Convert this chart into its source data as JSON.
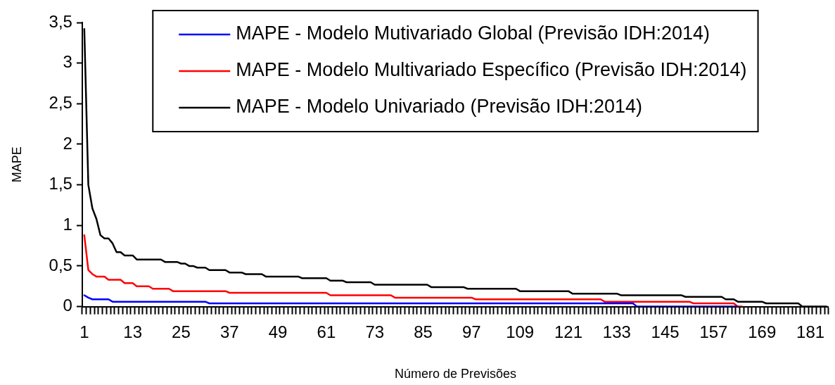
{
  "chart_data": {
    "type": "line",
    "xlabel": "Número de Previsões",
    "ylabel": "MAPE",
    "categories": [
      "1",
      null,
      null,
      null,
      null,
      null,
      null,
      null,
      null,
      null,
      null,
      null,
      "13",
      null,
      null,
      null,
      null,
      null,
      null,
      null,
      null,
      null,
      null,
      null,
      "25",
      null,
      null,
      null,
      null,
      null,
      null,
      null,
      null,
      null,
      null,
      null,
      "37",
      null,
      null,
      null,
      null,
      null,
      null,
      null,
      null,
      null,
      null,
      null,
      "49",
      null,
      null,
      null,
      null,
      null,
      null,
      null,
      null,
      null,
      null,
      null,
      "61",
      null,
      null,
      null,
      null,
      null,
      null,
      null,
      null,
      null,
      null,
      null,
      "73",
      null,
      null,
      null,
      null,
      null,
      null,
      null,
      null,
      null,
      null,
      null,
      "85",
      null,
      null,
      null,
      null,
      null,
      null,
      null,
      null,
      null,
      null,
      null,
      "97",
      null,
      null,
      null,
      null,
      null,
      null,
      null,
      null,
      null,
      null,
      null,
      "109",
      null,
      null,
      null,
      null,
      null,
      null,
      null,
      null,
      null,
      null,
      null,
      "121",
      null,
      null,
      null,
      null,
      null,
      null,
      null,
      null,
      null,
      null,
      null,
      "133",
      null,
      null,
      null,
      null,
      null,
      null,
      null,
      null,
      null,
      null,
      null,
      "145",
      null,
      null,
      null,
      null,
      null,
      null,
      null,
      null,
      null,
      null,
      null,
      "157",
      null,
      null,
      null,
      null,
      null,
      null,
      null,
      null,
      null,
      null,
      null,
      "169",
      null,
      null,
      null,
      null,
      null,
      null,
      null,
      null,
      null,
      null,
      null,
      "181",
      null,
      null,
      null,
      null
    ],
    "series": [
      {
        "name": "MAPE - Modelo Mutivariado Global (Previsão IDH:2014)",
        "color": "#0000ff",
        "values": [
          0.14,
          0.11,
          0.09,
          0.09,
          0.09,
          0.09,
          0.09,
          0.06,
          0.06,
          0.06,
          0.06,
          0.06,
          0.06,
          0.06,
          0.06,
          0.06,
          0.06,
          0.06,
          0.06,
          0.06,
          0.06,
          0.06,
          0.06,
          0.06,
          0.06,
          0.06,
          0.06,
          0.06,
          0.06,
          0.06,
          0.06,
          0.04,
          0.04,
          0.04,
          0.04,
          0.04,
          0.04,
          0.04,
          0.04,
          0.04,
          0.04,
          0.04,
          0.04,
          0.04,
          0.04,
          0.04,
          0.04,
          0.04,
          0.04,
          0.04,
          0.04,
          0.04,
          0.04,
          0.04,
          0.04,
          0.04,
          0.04,
          0.04,
          0.04,
          0.04,
          0.04,
          0.04,
          0.04,
          0.04,
          0.04,
          0.04,
          0.04,
          0.04,
          0.04,
          0.04,
          0.04,
          0.04,
          0.04,
          0.04,
          0.04,
          0.04,
          0.04,
          0.04,
          0.04,
          0.04,
          0.04,
          0.04,
          0.04,
          0.04,
          0.04,
          0.04,
          0.04,
          0.04,
          0.04,
          0.04,
          0.04,
          0.04,
          0.04,
          0.04,
          0.04,
          0.04,
          0.04,
          0.04,
          0.04,
          0.04,
          0.04,
          0.04,
          0.04,
          0.04,
          0.04,
          0.04,
          0.04,
          0.04,
          0.04,
          0.04,
          0.04,
          0.04,
          0.04,
          0.04,
          0.04,
          0.04,
          0.04,
          0.04,
          0.04,
          0.04,
          0.04,
          0.04,
          0.04,
          0.04,
          0.04,
          0.04,
          0.04,
          0.04,
          0.04,
          0.04,
          0.04,
          0.04,
          0.04,
          0.04,
          0.04,
          0.04,
          0.04,
          0,
          0,
          0,
          0,
          0,
          0,
          0,
          0,
          0,
          0,
          0,
          0,
          0,
          0,
          0,
          0,
          0,
          0,
          0,
          0,
          0,
          0,
          0,
          0,
          0,
          0,
          null,
          null,
          null,
          null,
          null,
          null,
          null,
          null,
          null,
          null,
          null,
          null,
          null,
          null,
          null,
          null,
          null,
          null,
          null,
          null,
          null,
          null
        ]
      },
      {
        "name": "MAPE - Modelo Multivariado Específico (Previsão IDH:2014)",
        "color": "#ff0000",
        "values": [
          0.88,
          0.45,
          0.4,
          0.37,
          0.37,
          0.37,
          0.33,
          0.33,
          0.33,
          0.33,
          0.29,
          0.29,
          0.29,
          0.25,
          0.25,
          0.25,
          0.25,
          0.22,
          0.22,
          0.22,
          0.22,
          0.22,
          0.19,
          0.19,
          0.19,
          0.19,
          0.19,
          0.19,
          0.19,
          0.19,
          0.19,
          0.19,
          0.19,
          0.19,
          0.19,
          0.19,
          0.17,
          0.17,
          0.17,
          0.17,
          0.17,
          0.17,
          0.17,
          0.17,
          0.17,
          0.17,
          0.17,
          0.17,
          0.17,
          0.17,
          0.17,
          0.17,
          0.17,
          0.17,
          0.17,
          0.17,
          0.17,
          0.17,
          0.17,
          0.17,
          0.17,
          0.14,
          0.14,
          0.14,
          0.14,
          0.14,
          0.14,
          0.14,
          0.14,
          0.14,
          0.14,
          0.14,
          0.14,
          0.14,
          0.14,
          0.14,
          0.14,
          0.11,
          0.11,
          0.11,
          0.11,
          0.11,
          0.11,
          0.11,
          0.11,
          0.11,
          0.11,
          0.11,
          0.11,
          0.11,
          0.11,
          0.11,
          0.11,
          0.11,
          0.11,
          0.11,
          0.11,
          0.09,
          0.09,
          0.09,
          0.09,
          0.09,
          0.09,
          0.09,
          0.09,
          0.09,
          0.09,
          0.09,
          0.09,
          0.09,
          0.09,
          0.09,
          0.09,
          0.09,
          0.09,
          0.09,
          0.09,
          0.09,
          0.09,
          0.09,
          0.09,
          0.09,
          0.09,
          0.09,
          0.09,
          0.09,
          0.09,
          0.09,
          0.09,
          0.06,
          0.06,
          0.06,
          0.06,
          0.06,
          0.06,
          0.06,
          0.06,
          0.06,
          0.06,
          0.06,
          0.06,
          0.06,
          0.06,
          0.06,
          0.06,
          0.06,
          0.06,
          0.06,
          0.06,
          0.06,
          0.06,
          0.04,
          0.04,
          0.04,
          0.04,
          0.04,
          0.04,
          0.04,
          0.04,
          0.04,
          0.04,
          0.04,
          0,
          0,
          null,
          null,
          null,
          null,
          null,
          null,
          null,
          null,
          null,
          null,
          null,
          null,
          null,
          null,
          null,
          null,
          null,
          null,
          null,
          null,
          null
        ]
      },
      {
        "name": "MAPE - Modelo Univariado (Previsão IDH:2014)",
        "color": "#000000",
        "values": [
          3.42,
          1.5,
          1.21,
          1.08,
          0.88,
          0.84,
          0.84,
          0.78,
          0.67,
          0.67,
          0.63,
          0.63,
          0.63,
          0.58,
          0.58,
          0.58,
          0.58,
          0.58,
          0.58,
          0.58,
          0.55,
          0.55,
          0.55,
          0.55,
          0.53,
          0.53,
          0.5,
          0.5,
          0.48,
          0.48,
          0.48,
          0.45,
          0.45,
          0.45,
          0.45,
          0.45,
          0.42,
          0.42,
          0.42,
          0.42,
          0.4,
          0.4,
          0.4,
          0.4,
          0.4,
          0.37,
          0.37,
          0.37,
          0.37,
          0.37,
          0.37,
          0.37,
          0.37,
          0.37,
          0.35,
          0.35,
          0.35,
          0.35,
          0.35,
          0.35,
          0.35,
          0.32,
          0.32,
          0.32,
          0.32,
          0.3,
          0.3,
          0.3,
          0.3,
          0.3,
          0.3,
          0.3,
          0.27,
          0.27,
          0.27,
          0.27,
          0.27,
          0.27,
          0.27,
          0.27,
          0.27,
          0.27,
          0.27,
          0.27,
          0.27,
          0.27,
          0.24,
          0.24,
          0.24,
          0.24,
          0.24,
          0.24,
          0.24,
          0.24,
          0.24,
          0.22,
          0.22,
          0.22,
          0.22,
          0.22,
          0.22,
          0.22,
          0.22,
          0.22,
          0.22,
          0.22,
          0.22,
          0.22,
          0.19,
          0.19,
          0.19,
          0.19,
          0.19,
          0.19,
          0.19,
          0.19,
          0.19,
          0.19,
          0.19,
          0.19,
          0.19,
          0.16,
          0.16,
          0.16,
          0.16,
          0.16,
          0.16,
          0.16,
          0.16,
          0.16,
          0.16,
          0.16,
          0.16,
          0.14,
          0.14,
          0.14,
          0.14,
          0.14,
          0.14,
          0.14,
          0.14,
          0.14,
          0.14,
          0.14,
          0.14,
          0.14,
          0.14,
          0.14,
          0.14,
          0.12,
          0.12,
          0.12,
          0.12,
          0.12,
          0.12,
          0.12,
          0.12,
          0.12,
          0.12,
          0.09,
          0.09,
          0.09,
          0.06,
          0.06,
          0.06,
          0.06,
          0.06,
          0.06,
          0.06,
          0.04,
          0.04,
          0.04,
          0.04,
          0.04,
          0.04,
          0.04,
          0.04,
          0.04,
          0,
          0,
          0,
          0,
          0,
          0,
          0
        ]
      }
    ],
    "ylim": [
      0,
      3.5
    ],
    "yticks": [
      {
        "value": 0,
        "label": "0"
      },
      {
        "value": 0.5,
        "label": "0,5"
      },
      {
        "value": 1,
        "label": "1"
      },
      {
        "value": 1.5,
        "label": "1,5"
      },
      {
        "value": 2,
        "label": "2"
      },
      {
        "value": 2.5,
        "label": "2,5"
      },
      {
        "value": 3,
        "label": "3"
      },
      {
        "value": 3.5,
        "label": "3,5"
      }
    ],
    "legend": "top",
    "grid": false,
    "marker": "none",
    "line_style": "solid"
  }
}
